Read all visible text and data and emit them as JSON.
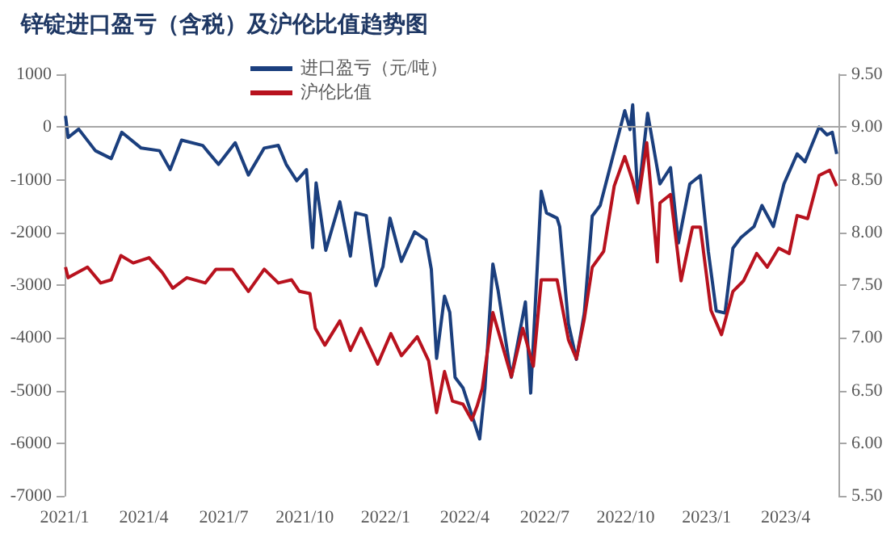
{
  "chart_data": {
    "type": "line",
    "title": "锌锭进口盈亏（含税）及沪伦比值趋势图",
    "legend": "top",
    "marker": "none",
    "line_style": "solid",
    "grid": false,
    "xlim": [
      "2021-01-01",
      "2023-05-31"
    ],
    "xticks": [
      {
        "value": "2021-01-01",
        "label": "2021/1"
      },
      {
        "value": "2021-04-01",
        "label": "2021/4"
      },
      {
        "value": "2021-07-01",
        "label": "2021/7"
      },
      {
        "value": "2021-10-01",
        "label": "2021/10"
      },
      {
        "value": "2022-01-01",
        "label": "2022/1"
      },
      {
        "value": "2022-04-01",
        "label": "2022/4"
      },
      {
        "value": "2022-07-01",
        "label": "2022/7"
      },
      {
        "value": "2022-10-01",
        "label": "2022/10"
      },
      {
        "value": "2023-01-01",
        "label": "2023/1"
      },
      {
        "value": "2023-04-01",
        "label": "2023/4"
      }
    ],
    "ylim": [
      -7000,
      1000
    ],
    "yticks": [
      -7000,
      -6000,
      -5000,
      -4000,
      -3000,
      -2000,
      -1000,
      0,
      1000
    ],
    "y2lim": [
      5.5,
      9.5
    ],
    "y2ticks": [
      {
        "value": 5.5,
        "label": "5.50"
      },
      {
        "value": 6,
        "label": "6.00"
      },
      {
        "value": 6.5,
        "label": "6.50"
      },
      {
        "value": 7,
        "label": "7.00"
      },
      {
        "value": 7.5,
        "label": "7.50"
      },
      {
        "value": 8,
        "label": "8.00"
      },
      {
        "value": 8.5,
        "label": "8.50"
      },
      {
        "value": 9,
        "label": "9.00"
      },
      {
        "value": 9.5,
        "label": "9.50"
      }
    ],
    "ref_lines": [
      {
        "axis": "y",
        "value": 0,
        "color": "#a6a6a6"
      }
    ],
    "series": [
      {
        "name": "进口盈亏（元/吨）",
        "color": "#1b3f7e",
        "x": [
          "2021-01-02",
          "2021-01-05",
          "2021-01-17",
          "2021-02-05",
          "2021-02-23",
          "2021-03-07",
          "2021-03-29",
          "2021-04-19",
          "2021-05-01",
          "2021-05-14",
          "2021-06-07",
          "2021-06-25",
          "2021-07-14",
          "2021-07-29",
          "2021-08-16",
          "2021-09-01",
          "2021-09-10",
          "2021-09-22",
          "2021-10-03",
          "2021-10-10",
          "2021-10-14",
          "2021-10-25",
          "2021-11-10",
          "2021-11-22",
          "2021-11-28",
          "2021-12-10",
          "2021-12-21",
          "2021-12-29",
          "2022-01-06",
          "2022-01-19",
          "2022-02-03",
          "2022-02-16",
          "2022-02-22",
          "2022-02-28",
          "2022-03-09",
          "2022-03-15",
          "2022-03-21",
          "2022-03-30",
          "2022-04-18",
          "2022-04-24",
          "2022-05-03",
          "2022-05-09",
          "2022-05-24",
          "2022-06-09",
          "2022-06-15",
          "2022-06-27",
          "2022-07-03",
          "2022-07-15",
          "2022-07-18",
          "2022-07-28",
          "2022-08-06",
          "2022-08-15",
          "2022-08-24",
          "2022-09-02",
          "2022-09-18",
          "2022-09-30",
          "2022-10-06",
          "2022-10-09",
          "2022-10-15",
          "2022-10-26",
          "2022-11-06",
          "2022-11-09",
          "2022-11-21",
          "2022-11-30",
          "2022-12-13",
          "2022-12-25",
          "2023-01-03",
          "2023-01-12",
          "2023-01-22",
          "2023-01-31",
          "2023-02-09",
          "2023-02-24",
          "2023-03-05",
          "2023-03-18",
          "2023-03-30",
          "2023-04-14",
          "2023-04-23",
          "2023-05-09",
          "2023-05-18",
          "2023-05-24",
          "2023-05-29"
        ],
        "values": [
          210,
          -200,
          -40,
          -450,
          -600,
          -100,
          -400,
          -450,
          -810,
          -250,
          -350,
          -710,
          -300,
          -910,
          -400,
          -350,
          -710,
          -1020,
          -810,
          -2290,
          -1060,
          -2340,
          -1420,
          -2450,
          -1630,
          -1680,
          -3010,
          -2650,
          -1730,
          -2550,
          -1990,
          -2140,
          -2700,
          -4390,
          -3210,
          -3520,
          -4750,
          -4950,
          -5920,
          -4950,
          -2600,
          -3110,
          -4750,
          -3320,
          -5050,
          -1220,
          -1630,
          -1730,
          -1890,
          -3740,
          -4410,
          -3530,
          -1690,
          -1490,
          -460,
          310,
          -50,
          420,
          -1380,
          260,
          null,
          -1080,
          -770,
          -2200,
          -1080,
          -920,
          -2360,
          -3490,
          -3530,
          -2300,
          -2100,
          -1890,
          -1490,
          -1890,
          -1080,
          -510,
          -660,
          0,
          -150,
          -100,
          -510
        ]
      },
      {
        "name": "沪伦比值",
        "color": "#b8121e",
        "axis": "y2",
        "x": [
          "2021-01-02",
          "2021-01-05",
          "2021-01-27",
          "2021-02-11",
          "2021-02-23",
          "2021-03-06",
          "2021-03-20",
          "2021-04-07",
          "2021-04-22",
          "2021-05-04",
          "2021-05-20",
          "2021-06-10",
          "2021-06-22",
          "2021-07-11",
          "2021-07-29",
          "2021-08-16",
          "2021-09-01",
          "2021-09-16",
          "2021-09-25",
          "2021-10-07",
          "2021-10-13",
          "2021-10-24",
          "2021-11-10",
          "2021-11-22",
          "2021-12-04",
          "2021-12-23",
          "2022-01-07",
          "2022-01-19",
          "2022-02-06",
          "2022-02-19",
          "2022-02-28",
          "2022-03-09",
          "2022-03-18",
          "2022-03-30",
          "2022-04-09",
          "2022-04-15",
          "2022-04-21",
          "2022-05-03",
          "2022-05-12",
          "2022-05-24",
          "2022-06-06",
          "2022-06-18",
          "2022-06-27",
          "2022-07-15",
          "2022-07-28",
          "2022-08-06",
          "2022-08-15",
          "2022-08-24",
          "2022-09-06",
          "2022-09-18",
          "2022-09-30",
          "2022-10-09",
          "2022-10-15",
          "2022-10-25",
          "2022-11-06",
          "2022-11-09",
          "2022-11-21",
          "2022-12-03",
          "2022-12-16",
          "2022-12-25",
          "2023-01-06",
          "2023-01-18",
          "2023-01-31",
          "2023-02-12",
          "2023-02-27",
          "2023-03-11",
          "2023-03-24",
          "2023-04-05",
          "2023-04-14",
          "2023-04-26",
          "2023-05-09",
          "2023-05-21",
          "2023-05-29"
        ],
        "values": [
          7.67,
          7.57,
          7.67,
          7.52,
          7.55,
          7.78,
          7.71,
          7.76,
          7.62,
          7.47,
          7.57,
          7.52,
          7.65,
          7.65,
          7.44,
          7.65,
          7.52,
          7.55,
          7.44,
          7.42,
          7.09,
          6.93,
          7.16,
          6.88,
          7.09,
          6.75,
          7.04,
          6.83,
          7.01,
          6.78,
          6.29,
          6.68,
          6.4,
          6.37,
          6.22,
          6.35,
          6.52,
          7.24,
          6.98,
          6.63,
          7.09,
          6.73,
          7.55,
          7.55,
          6.98,
          6.8,
          7.18,
          7.67,
          7.82,
          8.44,
          8.72,
          8.49,
          8.28,
          8.85,
          7.72,
          8.28,
          8.36,
          7.54,
          8.05,
          8.05,
          7.26,
          7.03,
          7.44,
          7.54,
          7.8,
          7.67,
          7.85,
          7.8,
          8.16,
          8.13,
          8.54,
          8.59,
          8.44
        ]
      }
    ]
  }
}
